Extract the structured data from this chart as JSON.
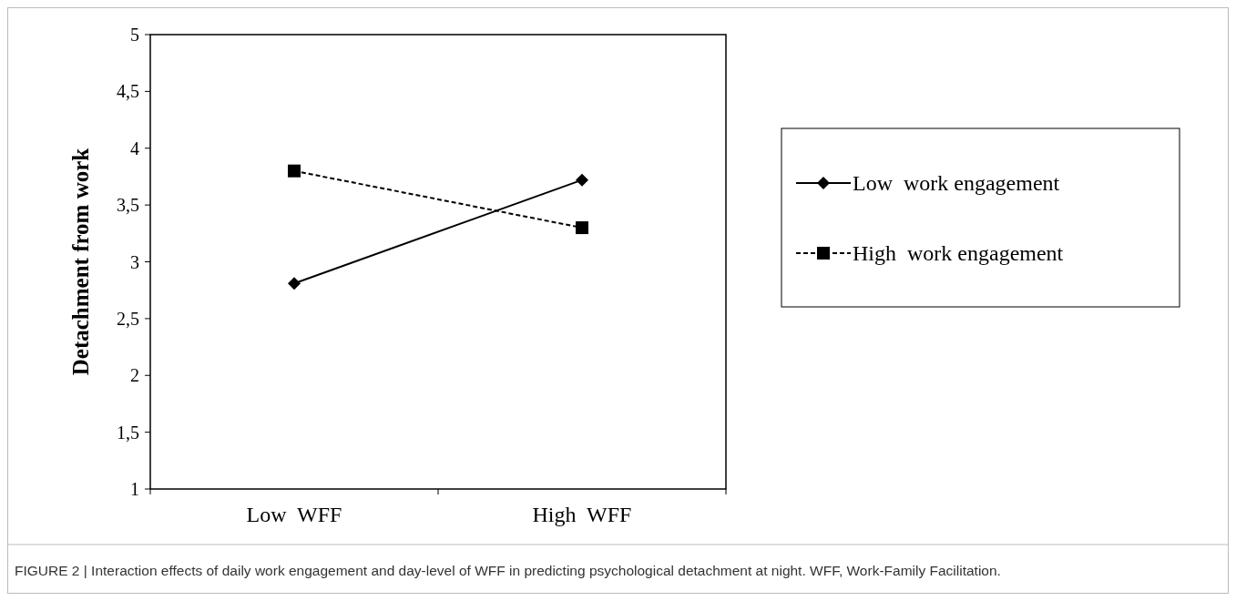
{
  "chart_data": {
    "type": "line",
    "ylabel": "Detachment from work",
    "categories": [
      "Low  WFF",
      "High  WFF"
    ],
    "series": [
      {
        "name": "Low  work engagement",
        "color": "#000000",
        "values": [
          2.81,
          3.72
        ],
        "marker": "diamond",
        "line_style": "solid"
      },
      {
        "name": "High  work engagement",
        "color": "#000000",
        "values": [
          3.8,
          3.3
        ],
        "marker": "square",
        "line_style": "dashed"
      }
    ],
    "ylim": [
      1,
      5
    ],
    "yticks": [
      1,
      {
        "value": 1.5,
        "label": "1,5"
      },
      2,
      {
        "value": 2.5,
        "label": "2,5"
      },
      3,
      {
        "value": 3.5,
        "label": "3,5"
      },
      4,
      {
        "value": 4.5,
        "label": "4,5"
      },
      5
    ],
    "legend": "right",
    "grid": false,
    "annotations": [
      "FIGURE 2 | Interaction effects of daily work engagement and day-level of WFF in predicting psychological detachment at night. WFF, Work-Family Facilitation."
    ]
  }
}
